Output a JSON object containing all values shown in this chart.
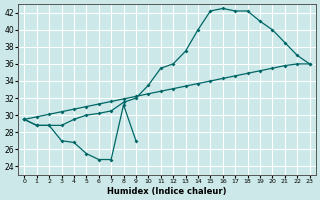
{
  "background_color": "#cce8e8",
  "grid_color": "#ffffff",
  "line_color": "#006666",
  "xlabel": "Humidex (Indice chaleur)",
  "xlim": [
    -0.5,
    23.5
  ],
  "ylim": [
    23,
    43
  ],
  "xticks": [
    0,
    1,
    2,
    3,
    4,
    5,
    6,
    7,
    8,
    9,
    10,
    11,
    12,
    13,
    14,
    15,
    16,
    17,
    18,
    19,
    20,
    21,
    22,
    23
  ],
  "yticks": [
    24,
    26,
    28,
    30,
    32,
    34,
    36,
    38,
    40,
    42
  ],
  "series": [
    {
      "x": [
        0,
        1,
        2,
        3,
        4,
        5,
        6,
        7,
        8,
        9,
        10,
        11,
        12,
        13,
        14,
        15,
        16,
        17,
        18,
        19,
        20,
        21,
        22,
        23
      ],
      "y": [
        29.5,
        29.8,
        30.1,
        30.4,
        30.7,
        31.0,
        31.3,
        31.6,
        31.9,
        32.2,
        32.5,
        32.8,
        33.1,
        33.4,
        33.7,
        34.0,
        34.3,
        34.6,
        34.9,
        35.2,
        35.5,
        35.8,
        36.0,
        36.0
      ]
    },
    {
      "x": [
        0,
        1,
        2,
        3,
        4,
        5,
        6,
        7,
        8,
        9,
        10,
        11,
        12,
        13,
        14,
        15,
        16,
        17,
        18,
        19,
        20,
        21,
        22,
        23
      ],
      "y": [
        29.5,
        28.8,
        28.8,
        28.8,
        29.5,
        30.0,
        30.2,
        30.5,
        31.5,
        32.0,
        33.5,
        35.5,
        36.0,
        37.5,
        40.0,
        42.2,
        42.5,
        42.2,
        42.2,
        41.0,
        40.0,
        38.5,
        37.0,
        36.0
      ]
    },
    {
      "x": [
        0,
        1,
        2,
        3,
        4,
        5,
        6,
        7,
        8,
        9
      ],
      "y": [
        29.5,
        28.8,
        28.8,
        27.0,
        26.8,
        25.5,
        24.8,
        24.8,
        31.2,
        27.0
      ]
    }
  ]
}
